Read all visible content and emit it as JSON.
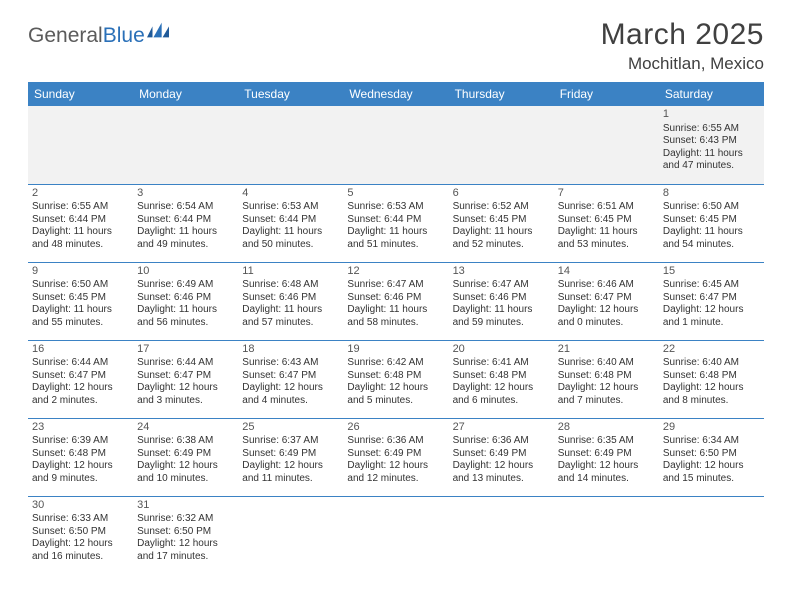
{
  "logo": {
    "text1": "General",
    "text2": "Blue"
  },
  "title": "March 2025",
  "location": "Mochitlan, Mexico",
  "colors": {
    "header_bg": "#3b82c4",
    "header_text": "#ffffff",
    "rule": "#3b82c4",
    "first_row_bg": "#f2f2f2",
    "text": "#333333",
    "title_color": "#404040"
  },
  "day_names": [
    "Sunday",
    "Monday",
    "Tuesday",
    "Wednesday",
    "Thursday",
    "Friday",
    "Saturday"
  ],
  "weeks": [
    [
      null,
      null,
      null,
      null,
      null,
      null,
      {
        "n": "1",
        "sr": "Sunrise: 6:55 AM",
        "ss": "Sunset: 6:43 PM",
        "d1": "Daylight: 11 hours",
        "d2": "and 47 minutes."
      }
    ],
    [
      {
        "n": "2",
        "sr": "Sunrise: 6:55 AM",
        "ss": "Sunset: 6:44 PM",
        "d1": "Daylight: 11 hours",
        "d2": "and 48 minutes."
      },
      {
        "n": "3",
        "sr": "Sunrise: 6:54 AM",
        "ss": "Sunset: 6:44 PM",
        "d1": "Daylight: 11 hours",
        "d2": "and 49 minutes."
      },
      {
        "n": "4",
        "sr": "Sunrise: 6:53 AM",
        "ss": "Sunset: 6:44 PM",
        "d1": "Daylight: 11 hours",
        "d2": "and 50 minutes."
      },
      {
        "n": "5",
        "sr": "Sunrise: 6:53 AM",
        "ss": "Sunset: 6:44 PM",
        "d1": "Daylight: 11 hours",
        "d2": "and 51 minutes."
      },
      {
        "n": "6",
        "sr": "Sunrise: 6:52 AM",
        "ss": "Sunset: 6:45 PM",
        "d1": "Daylight: 11 hours",
        "d2": "and 52 minutes."
      },
      {
        "n": "7",
        "sr": "Sunrise: 6:51 AM",
        "ss": "Sunset: 6:45 PM",
        "d1": "Daylight: 11 hours",
        "d2": "and 53 minutes."
      },
      {
        "n": "8",
        "sr": "Sunrise: 6:50 AM",
        "ss": "Sunset: 6:45 PM",
        "d1": "Daylight: 11 hours",
        "d2": "and 54 minutes."
      }
    ],
    [
      {
        "n": "9",
        "sr": "Sunrise: 6:50 AM",
        "ss": "Sunset: 6:45 PM",
        "d1": "Daylight: 11 hours",
        "d2": "and 55 minutes."
      },
      {
        "n": "10",
        "sr": "Sunrise: 6:49 AM",
        "ss": "Sunset: 6:46 PM",
        "d1": "Daylight: 11 hours",
        "d2": "and 56 minutes."
      },
      {
        "n": "11",
        "sr": "Sunrise: 6:48 AM",
        "ss": "Sunset: 6:46 PM",
        "d1": "Daylight: 11 hours",
        "d2": "and 57 minutes."
      },
      {
        "n": "12",
        "sr": "Sunrise: 6:47 AM",
        "ss": "Sunset: 6:46 PM",
        "d1": "Daylight: 11 hours",
        "d2": "and 58 minutes."
      },
      {
        "n": "13",
        "sr": "Sunrise: 6:47 AM",
        "ss": "Sunset: 6:46 PM",
        "d1": "Daylight: 11 hours",
        "d2": "and 59 minutes."
      },
      {
        "n": "14",
        "sr": "Sunrise: 6:46 AM",
        "ss": "Sunset: 6:47 PM",
        "d1": "Daylight: 12 hours",
        "d2": "and 0 minutes."
      },
      {
        "n": "15",
        "sr": "Sunrise: 6:45 AM",
        "ss": "Sunset: 6:47 PM",
        "d1": "Daylight: 12 hours",
        "d2": "and 1 minute."
      }
    ],
    [
      {
        "n": "16",
        "sr": "Sunrise: 6:44 AM",
        "ss": "Sunset: 6:47 PM",
        "d1": "Daylight: 12 hours",
        "d2": "and 2 minutes."
      },
      {
        "n": "17",
        "sr": "Sunrise: 6:44 AM",
        "ss": "Sunset: 6:47 PM",
        "d1": "Daylight: 12 hours",
        "d2": "and 3 minutes."
      },
      {
        "n": "18",
        "sr": "Sunrise: 6:43 AM",
        "ss": "Sunset: 6:47 PM",
        "d1": "Daylight: 12 hours",
        "d2": "and 4 minutes."
      },
      {
        "n": "19",
        "sr": "Sunrise: 6:42 AM",
        "ss": "Sunset: 6:48 PM",
        "d1": "Daylight: 12 hours",
        "d2": "and 5 minutes."
      },
      {
        "n": "20",
        "sr": "Sunrise: 6:41 AM",
        "ss": "Sunset: 6:48 PM",
        "d1": "Daylight: 12 hours",
        "d2": "and 6 minutes."
      },
      {
        "n": "21",
        "sr": "Sunrise: 6:40 AM",
        "ss": "Sunset: 6:48 PM",
        "d1": "Daylight: 12 hours",
        "d2": "and 7 minutes."
      },
      {
        "n": "22",
        "sr": "Sunrise: 6:40 AM",
        "ss": "Sunset: 6:48 PM",
        "d1": "Daylight: 12 hours",
        "d2": "and 8 minutes."
      }
    ],
    [
      {
        "n": "23",
        "sr": "Sunrise: 6:39 AM",
        "ss": "Sunset: 6:48 PM",
        "d1": "Daylight: 12 hours",
        "d2": "and 9 minutes."
      },
      {
        "n": "24",
        "sr": "Sunrise: 6:38 AM",
        "ss": "Sunset: 6:49 PM",
        "d1": "Daylight: 12 hours",
        "d2": "and 10 minutes."
      },
      {
        "n": "25",
        "sr": "Sunrise: 6:37 AM",
        "ss": "Sunset: 6:49 PM",
        "d1": "Daylight: 12 hours",
        "d2": "and 11 minutes."
      },
      {
        "n": "26",
        "sr": "Sunrise: 6:36 AM",
        "ss": "Sunset: 6:49 PM",
        "d1": "Daylight: 12 hours",
        "d2": "and 12 minutes."
      },
      {
        "n": "27",
        "sr": "Sunrise: 6:36 AM",
        "ss": "Sunset: 6:49 PM",
        "d1": "Daylight: 12 hours",
        "d2": "and 13 minutes."
      },
      {
        "n": "28",
        "sr": "Sunrise: 6:35 AM",
        "ss": "Sunset: 6:49 PM",
        "d1": "Daylight: 12 hours",
        "d2": "and 14 minutes."
      },
      {
        "n": "29",
        "sr": "Sunrise: 6:34 AM",
        "ss": "Sunset: 6:50 PM",
        "d1": "Daylight: 12 hours",
        "d2": "and 15 minutes."
      }
    ],
    [
      {
        "n": "30",
        "sr": "Sunrise: 6:33 AM",
        "ss": "Sunset: 6:50 PM",
        "d1": "Daylight: 12 hours",
        "d2": "and 16 minutes."
      },
      {
        "n": "31",
        "sr": "Sunrise: 6:32 AM",
        "ss": "Sunset: 6:50 PM",
        "d1": "Daylight: 12 hours",
        "d2": "and 17 minutes."
      },
      null,
      null,
      null,
      null,
      null
    ]
  ]
}
